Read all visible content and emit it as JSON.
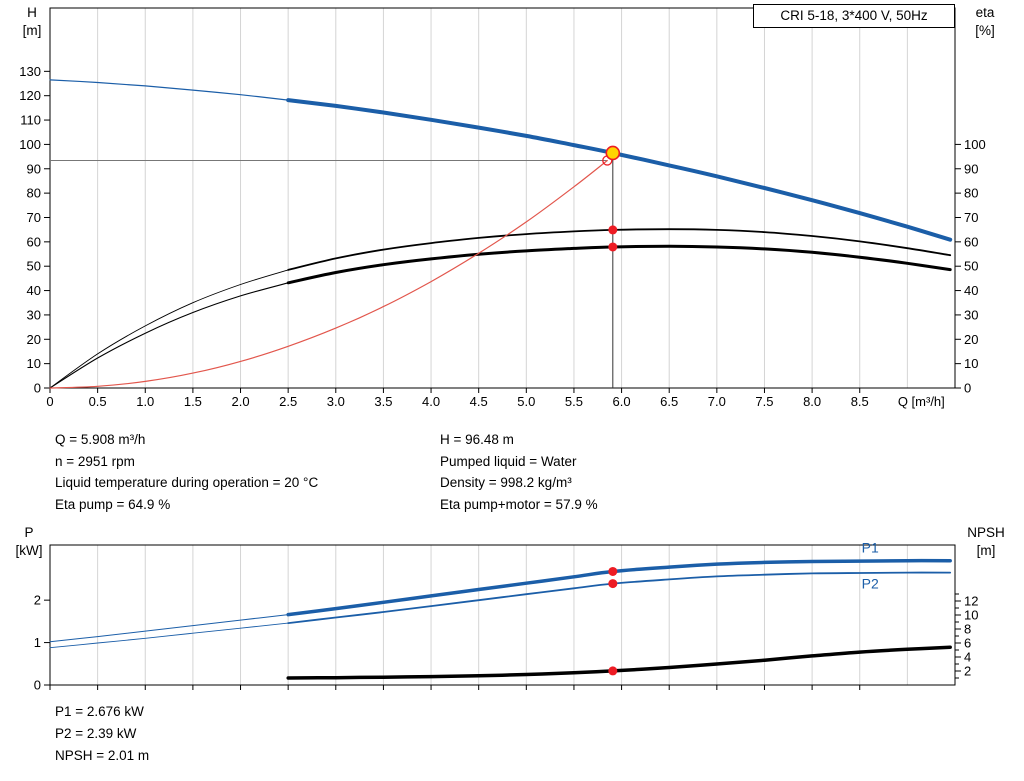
{
  "header": {
    "title": "CRI 5-18, 3*400 V, 50Hz"
  },
  "axes_labels": {
    "top_left_1": "H",
    "top_left_2": "[m]",
    "top_right_1": "eta",
    "top_right_2": "[%]",
    "bottom_left_1": "P",
    "bottom_left_2": "[kW]",
    "bottom_right_1": "NPSH",
    "bottom_right_2": "[m]"
  },
  "info_top": {
    "left": [
      "Q = 5.908 m³/h",
      "n = 2951 rpm",
      "Liquid temperature during operation = 20 °C",
      "Eta pump = 64.9 %"
    ],
    "right": [
      "H = 96.48 m",
      "Pumped liquid = Water",
      "Density = 998.2 kg/m³",
      "Eta pump+motor = 57.9 %"
    ]
  },
  "info_bottom": [
    "P1 = 2.676 kW",
    "P2 = 2.39 kW",
    "NPSH = 2.01 m"
  ],
  "colors": {
    "curve_blue": "#1b5ea8",
    "curve_red": "#e2564c",
    "dot_red": "#ed1c24",
    "duty_yellow": "#ffd400",
    "grid": "#d4d4d4",
    "axis": "#000000",
    "guide_v": "#333333",
    "guide_h": "#777777"
  },
  "chart_data": [
    {
      "type": "line",
      "name": "qh-eta-chart",
      "title": "CRI 5-18, 3*400 V, 50Hz",
      "xlabel": "Q [m³/h]",
      "xlabel_q": 8.9,
      "x_range": [
        0,
        9.5
      ],
      "x_ticks": [
        0,
        0.5,
        1,
        1.5,
        2,
        2.5,
        3,
        3.5,
        4,
        4.5,
        5,
        5.5,
        6,
        6.5,
        7,
        7.5,
        8,
        8.5
      ],
      "x_tick_labels": [
        "0",
        "0.5",
        "1.0",
        "1.5",
        "2.0",
        "2.5",
        "3.0",
        "3.5",
        "4.0",
        "4.5",
        "5.0",
        "5.5",
        "6.0",
        "6.5",
        "7.0",
        "7.5",
        "8.0",
        "8.5"
      ],
      "grid_x": [
        0.5,
        1,
        1.5,
        2,
        2.5,
        3,
        3.5,
        4,
        4.5,
        5,
        5.5,
        6,
        6.5,
        7,
        7.5,
        8,
        8.5,
        9
      ],
      "left_axis": {
        "label": "H [m]",
        "range": [
          0,
          156
        ],
        "ticks": [
          0,
          10,
          20,
          30,
          40,
          50,
          60,
          70,
          80,
          90,
          100,
          110,
          120,
          130
        ]
      },
      "right_axis": {
        "label": "eta [%]",
        "range": [
          0,
          156
        ],
        "ticks": [
          0,
          10,
          20,
          30,
          40,
          50,
          60,
          70,
          80,
          90,
          100
        ]
      },
      "guides": [
        {
          "type": "h",
          "value": 93.4,
          "to_q": 5.85
        },
        {
          "type": "v",
          "q": 5.908,
          "to_value": 96.48
        }
      ],
      "series": [
        {
          "name": "qh-curve",
          "axis": "left",
          "color": "#1b5ea8",
          "split": 2.5,
          "w_thin": 1.2,
          "w_thick": 4,
          "points": [
            [
              0,
              126.5
            ],
            [
              0.5,
              125.4
            ],
            [
              1,
              124.0
            ],
            [
              1.5,
              122.3
            ],
            [
              2,
              120.4
            ],
            [
              2.5,
              118.2
            ],
            [
              3,
              115.8
            ],
            [
              3.5,
              113.1
            ],
            [
              4,
              110.1
            ],
            [
              4.5,
              106.9
            ],
            [
              5,
              103.5
            ],
            [
              5.5,
              99.7
            ],
            [
              5.908,
              96.48
            ],
            [
              6.5,
              91.4
            ],
            [
              7,
              86.9
            ],
            [
              7.5,
              82.1
            ],
            [
              8,
              77.1
            ],
            [
              8.5,
              71.8
            ],
            [
              9,
              66.2
            ],
            [
              9.45,
              60.9
            ]
          ]
        },
        {
          "name": "eta-pump-curve",
          "axis": "right",
          "color": "#000000",
          "split": 2.5,
          "w_thin": 0.9,
          "w_thick": 1.8,
          "points": [
            [
              0,
              0
            ],
            [
              0.5,
              14
            ],
            [
              1,
              25.5
            ],
            [
              1.5,
              35
            ],
            [
              2,
              42.5
            ],
            [
              2.5,
              48.5
            ],
            [
              3,
              53.2
            ],
            [
              3.5,
              56.8
            ],
            [
              4,
              59.5
            ],
            [
              4.5,
              61.6
            ],
            [
              5,
              63.2
            ],
            [
              5.5,
              64.3
            ],
            [
              5.908,
              64.9
            ],
            [
              6.5,
              65.2
            ],
            [
              7,
              64.9
            ],
            [
              7.5,
              64
            ],
            [
              8,
              62.4
            ],
            [
              8.5,
              60.2
            ],
            [
              9,
              57.4
            ],
            [
              9.45,
              54.5
            ]
          ]
        },
        {
          "name": "eta-pump-motor-curve",
          "axis": "right",
          "color": "#000000",
          "split": 2.5,
          "w_thin": 1.1,
          "w_thick": 3,
          "points": [
            [
              0,
              0
            ],
            [
              0.5,
              12.3
            ],
            [
              1,
              22.5
            ],
            [
              1.5,
              31
            ],
            [
              2,
              37.8
            ],
            [
              2.5,
              43.2
            ],
            [
              3,
              47.4
            ],
            [
              3.5,
              50.6
            ],
            [
              4,
              53
            ],
            [
              4.5,
              54.9
            ],
            [
              5,
              56.3
            ],
            [
              5.5,
              57.3
            ],
            [
              5.908,
              57.9
            ],
            [
              6.5,
              58.2
            ],
            [
              7,
              57.9
            ],
            [
              7.5,
              57.1
            ],
            [
              8,
              55.7
            ],
            [
              8.5,
              53.7
            ],
            [
              9,
              51.2
            ],
            [
              9.45,
              48.6
            ]
          ]
        },
        {
          "name": "system-curve",
          "axis": "left",
          "color": "#e2564c",
          "w_thick": 1.2,
          "points": [
            [
              0,
              0
            ],
            [
              0.5,
              0.7
            ],
            [
              1,
              2.7
            ],
            [
              1.5,
              6.1
            ],
            [
              2,
              10.9
            ],
            [
              2.5,
              17.1
            ],
            [
              3,
              24.6
            ],
            [
              3.5,
              33.4
            ],
            [
              4,
              43.7
            ],
            [
              4.5,
              55.3
            ],
            [
              5,
              68.2
            ],
            [
              5.5,
              82.6
            ],
            [
              5.85,
              93.4
            ]
          ]
        }
      ],
      "markers": [
        {
          "type": "open",
          "q": 5.85,
          "value": 93.4,
          "axis": "left",
          "name": "system-intersection-point"
        },
        {
          "type": "dot",
          "q": 5.908,
          "value": 64.9,
          "axis": "right",
          "name": "eta-pump-marker"
        },
        {
          "type": "dot",
          "q": 5.908,
          "value": 57.9,
          "axis": "right",
          "name": "eta-pump-motor-marker"
        },
        {
          "type": "duty",
          "q": 5.908,
          "value": 96.48,
          "axis": "left",
          "name": "duty-point-marker"
        }
      ]
    },
    {
      "type": "line",
      "name": "power-npsh-chart",
      "x_range": [
        0,
        9.5
      ],
      "x_ticks": [
        0,
        0.5,
        1,
        1.5,
        2,
        2.5,
        3,
        3.5,
        4,
        4.5,
        5,
        5.5,
        6,
        6.5,
        7,
        7.5,
        8,
        8.5
      ],
      "grid_x": [
        0.5,
        1,
        1.5,
        2,
        2.5,
        3,
        3.5,
        4,
        4.5,
        5,
        5.5,
        6,
        6.5,
        7,
        7.5,
        8,
        8.5,
        9
      ],
      "left_axis": {
        "label": "P [kW]",
        "range": [
          0,
          3.3
        ],
        "ticks": [
          0,
          1,
          2
        ]
      },
      "right_axis": {
        "label": "NPSH [m]",
        "range": [
          0,
          20
        ],
        "ticks": [
          2,
          4,
          6,
          8,
          10,
          12
        ],
        "minor_ticks": [
          1,
          3,
          5,
          7,
          9,
          11,
          13
        ]
      },
      "series": [
        {
          "name": "p1-curve",
          "axis": "left",
          "color": "#1b5ea8",
          "split": 2.5,
          "w_thin": 1,
          "w_thick": 3.5,
          "points": [
            [
              0,
              1.02
            ],
            [
              0.5,
              1.14
            ],
            [
              1,
              1.27
            ],
            [
              1.5,
              1.4
            ],
            [
              2,
              1.53
            ],
            [
              2.5,
              1.66
            ],
            [
              3,
              1.8
            ],
            [
              3.5,
              1.95
            ],
            [
              4,
              2.1
            ],
            [
              4.5,
              2.25
            ],
            [
              5,
              2.4
            ],
            [
              5.5,
              2.55
            ],
            [
              5.908,
              2.676
            ],
            [
              6.5,
              2.78
            ],
            [
              7,
              2.85
            ],
            [
              7.5,
              2.89
            ],
            [
              8,
              2.91
            ],
            [
              8.5,
              2.92
            ],
            [
              9,
              2.93
            ],
            [
              9.45,
              2.93
            ]
          ]
        },
        {
          "name": "p2-curve",
          "axis": "left",
          "color": "#1b5ea8",
          "split": 2.5,
          "w_thin": 0.9,
          "w_thick": 1.8,
          "points": [
            [
              0,
              0.88
            ],
            [
              0.5,
              0.99
            ],
            [
              1,
              1.1
            ],
            [
              1.5,
              1.22
            ],
            [
              2,
              1.34
            ],
            [
              2.5,
              1.46
            ],
            [
              3,
              1.59
            ],
            [
              3.5,
              1.72
            ],
            [
              4,
              1.86
            ],
            [
              4.5,
              2.0
            ],
            [
              5,
              2.14
            ],
            [
              5.5,
              2.28
            ],
            [
              5.908,
              2.39
            ],
            [
              6.5,
              2.49
            ],
            [
              7,
              2.56
            ],
            [
              7.5,
              2.6
            ],
            [
              8,
              2.63
            ],
            [
              8.5,
              2.64
            ],
            [
              9,
              2.65
            ],
            [
              9.45,
              2.65
            ]
          ]
        },
        {
          "name": "npsh-curve",
          "axis": "right",
          "color": "#000000",
          "w_thick": 3.5,
          "points": [
            [
              2.5,
              1.0
            ],
            [
              3,
              1.05
            ],
            [
              3.5,
              1.12
            ],
            [
              4,
              1.2
            ],
            [
              4.5,
              1.32
            ],
            [
              5,
              1.5
            ],
            [
              5.5,
              1.75
            ],
            [
              5.908,
              2.01
            ],
            [
              6.5,
              2.5
            ],
            [
              7,
              3.0
            ],
            [
              7.5,
              3.55
            ],
            [
              8,
              4.15
            ],
            [
              8.5,
              4.7
            ],
            [
              9,
              5.1
            ],
            [
              9.45,
              5.4
            ]
          ]
        }
      ],
      "markers": [
        {
          "type": "dot",
          "q": 5.908,
          "value": 2.676,
          "axis": "left",
          "name": "p1-marker"
        },
        {
          "type": "dot",
          "q": 5.908,
          "value": 2.39,
          "axis": "left",
          "name": "p2-marker"
        },
        {
          "type": "dot",
          "q": 5.908,
          "value": 2.01,
          "axis": "right",
          "name": "npsh-marker"
        }
      ],
      "text_labels": [
        {
          "text": "P1",
          "q": 8.52,
          "value": 3.12,
          "axis": "left",
          "color": "#1b5ea8"
        },
        {
          "text": "P2",
          "q": 8.52,
          "value": 2.28,
          "axis": "left",
          "color": "#1b5ea8"
        }
      ]
    }
  ]
}
